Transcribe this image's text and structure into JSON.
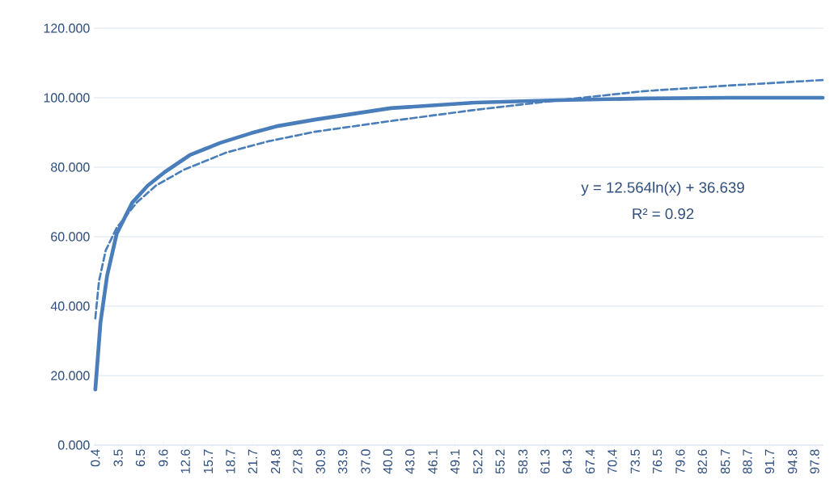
{
  "chart_data": {
    "type": "line",
    "grid": "y",
    "ylim": [
      0,
      120
    ],
    "yticks": [
      {
        "value": 0,
        "label": "0.000"
      },
      {
        "value": 20,
        "label": "20.000"
      },
      {
        "value": 40,
        "label": "40.000"
      },
      {
        "value": 60,
        "label": "60.000"
      },
      {
        "value": 80,
        "label": "80.000"
      },
      {
        "value": 100,
        "label": "100.000"
      },
      {
        "value": 120,
        "label": "120.000"
      }
    ],
    "xlim": [
      0.2,
      99
    ],
    "xticks": [
      0.4,
      3.5,
      6.5,
      9.6,
      12.6,
      15.7,
      18.7,
      21.7,
      24.8,
      27.8,
      30.9,
      33.9,
      {
        "value": 37,
        "label": "37.0"
      },
      {
        "value": 40,
        "label": "40.0"
      },
      {
        "value": 43,
        "label": "43.0"
      },
      46.1,
      49.1,
      52.2,
      55.2,
      58.3,
      61.3,
      64.3,
      67.4,
      70.4,
      73.5,
      76.5,
      79.6,
      82.6,
      85.7,
      88.7,
      91.7,
      94.8,
      97.8
    ],
    "annotations": [
      "y = 12.564ln(x) + 36.639",
      "R² = 0.92"
    ],
    "series": [
      {
        "color": "#4a7ebb",
        "line_style": "solid",
        "x": [
          0.4,
          1.1,
          2.0,
          3.3,
          5.4,
          7.5,
          9.8,
          13.2,
          17.3,
          21.5,
          25.2,
          30.1,
          40.4,
          51.8,
          63.2,
          74.7,
          86.1,
          98.9
        ],
        "values": [
          16,
          35.3,
          48.8,
          60.9,
          69.8,
          74.7,
          78.6,
          83.5,
          87.0,
          89.8,
          91.9,
          93.7,
          97.0,
          98.6,
          99.3,
          99.8,
          100,
          100
        ]
      },
      {
        "color": "#4a7ebb",
        "line_style": "dashed",
        "x": [
          0.4,
          0.9,
          1.8,
          3.3,
          6.0,
          8.6,
          12.4,
          18.1,
          23.7,
          30.1,
          40.4,
          51.8,
          63.2,
          74.7,
          86.1,
          98.9
        ],
        "values": [
          36.5,
          47.2,
          56,
          62.6,
          69.8,
          74.7,
          79.3,
          84.2,
          87.4,
          90.2,
          93.3,
          96.5,
          99.3,
          101.9,
          103.5,
          105.1
        ]
      }
    ]
  }
}
